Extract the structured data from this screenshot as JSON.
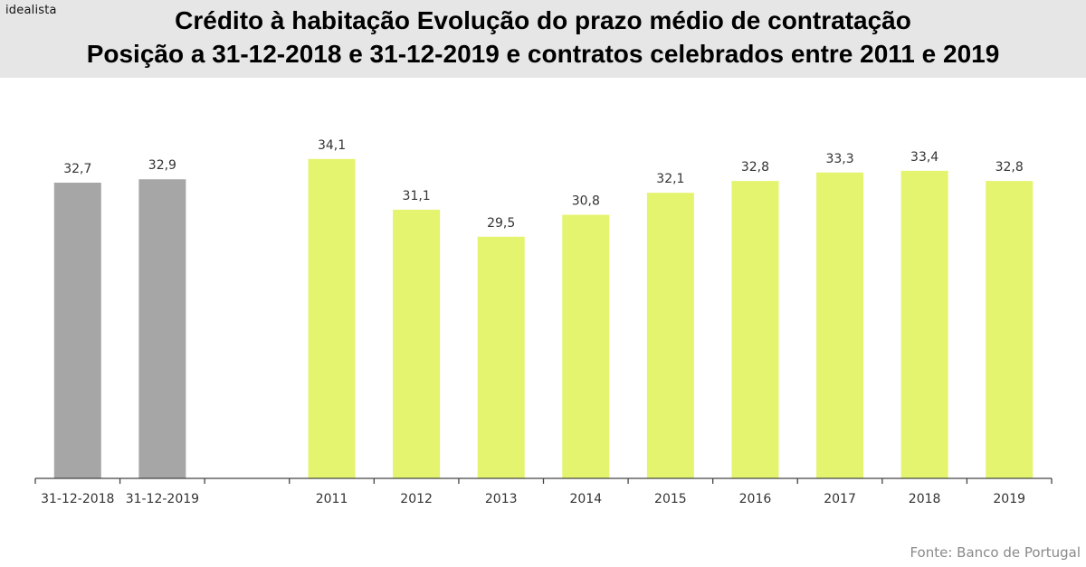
{
  "header": {
    "logo": "idealista",
    "title_line1": "Crédito à habitação Evolução do prazo médio de contratação",
    "title_line2": "Posição a 31-12-2018 e 31-12-2019 e contratos celebrados entre 2011 e 2019"
  },
  "source": "Fonte: Banco de Portugal",
  "chart_data": {
    "type": "bar",
    "title": "Crédito à habitação Evolução do prazo médio de contratação — Posição a 31-12-2018 e 31-12-2019 e contratos celebrados entre 2011 e 2019",
    "xlabel": "",
    "ylabel": "",
    "categories": [
      "31-12-2018",
      "31-12-2019",
      "",
      "2011",
      "2012",
      "2013",
      "2014",
      "2015",
      "2016",
      "2017",
      "2018",
      "2019"
    ],
    "values": [
      32.7,
      32.9,
      null,
      34.1,
      31.1,
      29.5,
      30.8,
      32.1,
      32.8,
      33.3,
      33.4,
      32.8
    ],
    "data_labels": [
      "32,7",
      "32,9",
      "",
      "34,1",
      "31,1",
      "29,5",
      "30,8",
      "32,1",
      "32,8",
      "33,3",
      "33,4",
      "32,8"
    ],
    "bar_colors": [
      "#a6a6a6",
      "#a6a6a6",
      null,
      "#e4f46e",
      "#e4f46e",
      "#e4f46e",
      "#e4f46e",
      "#e4f46e",
      "#e4f46e",
      "#e4f46e",
      "#e4f46e",
      "#e4f46e"
    ],
    "ylim": [
      15.2,
      35
    ],
    "grid": false,
    "legend": "none"
  }
}
